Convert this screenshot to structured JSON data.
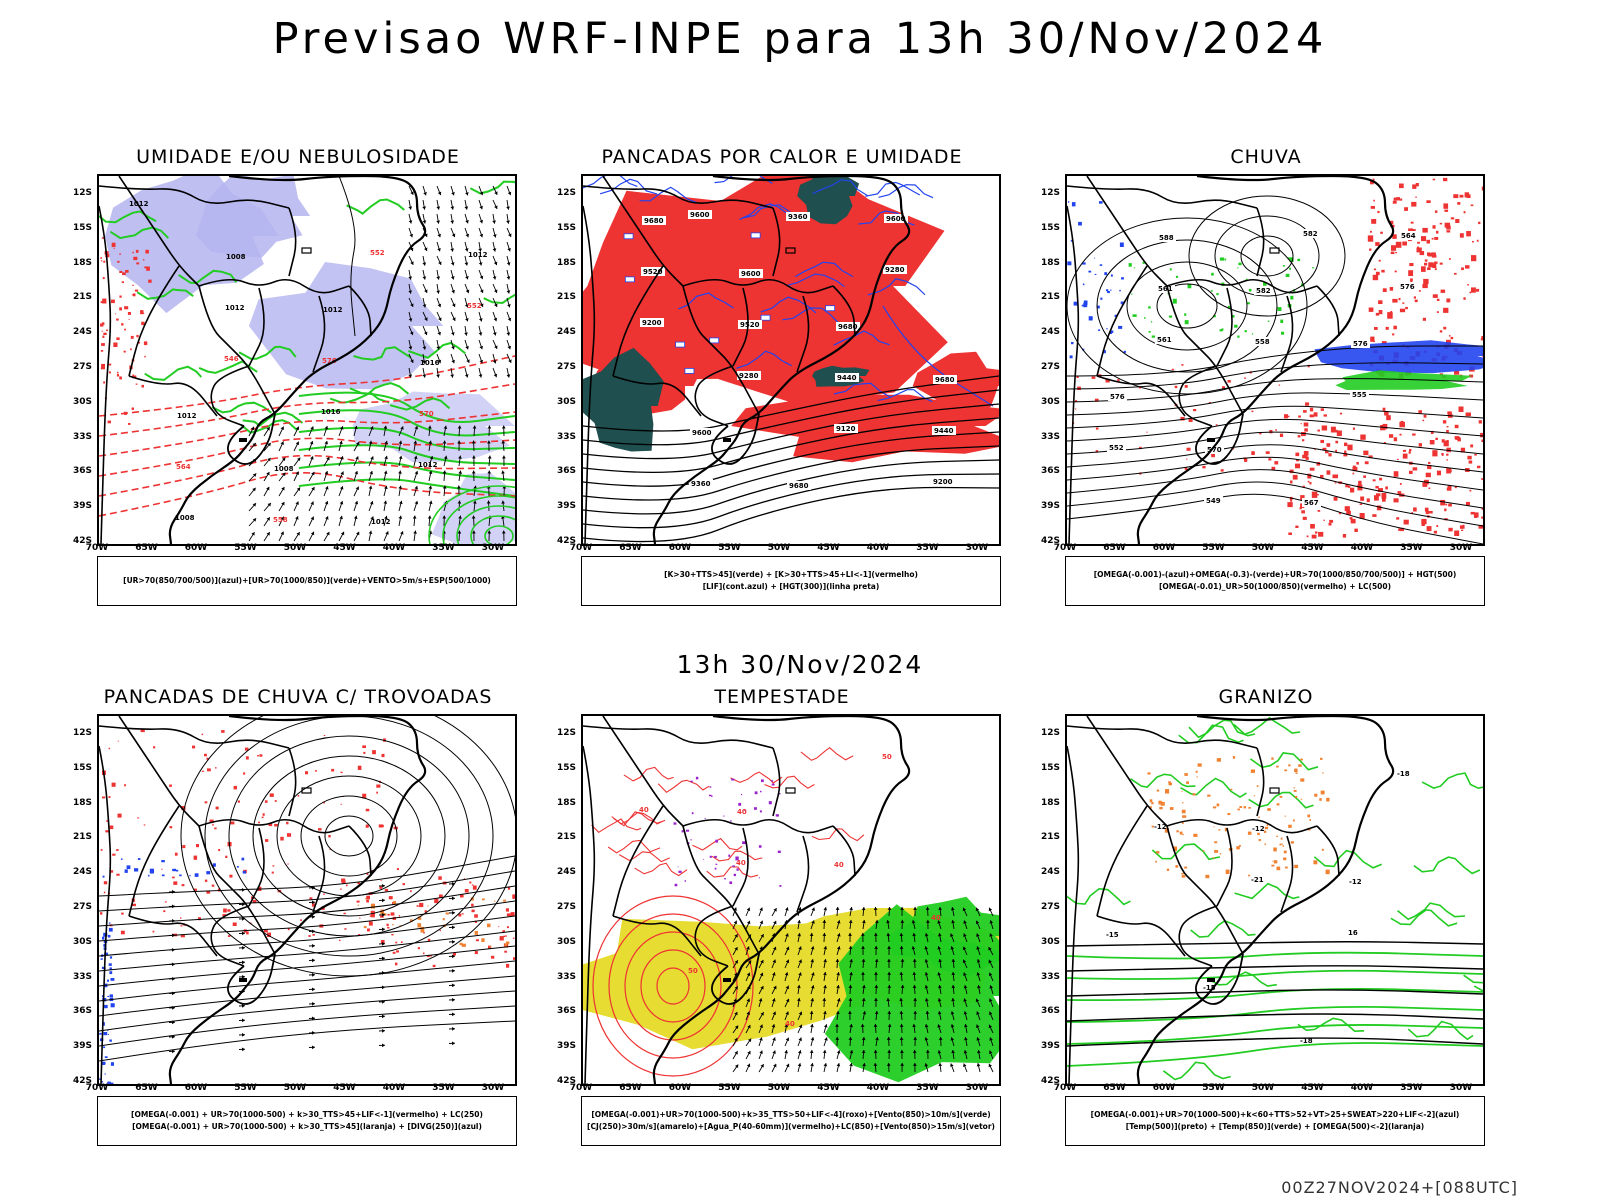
{
  "header": {
    "title": "Previsao WRF-INPE  para 13h 30/Nov/2024",
    "mid_title": "13h 30/Nov/2024",
    "footer": "00Z27NOV2024+[088UTC]"
  },
  "axes": {
    "lat_labels": [
      "12S",
      "15S",
      "18S",
      "21S",
      "24S",
      "27S",
      "30S",
      "33S",
      "36S",
      "39S",
      "42S"
    ],
    "lon_labels": [
      "70W",
      "65W",
      "60W",
      "55W",
      "50W",
      "45W",
      "40W",
      "35W",
      "30W"
    ]
  },
  "colors": {
    "red": "#ee3333",
    "green": "#22cc22",
    "blue": "#2244ee",
    "lavender": "#b4b4f0",
    "darkteal": "#1f4f4f",
    "yellow": "#e6dc32",
    "orange": "#f08232",
    "purple": "#9922cc",
    "black": "#000000"
  },
  "panels": [
    {
      "id": "umidade",
      "title": "UMIDADE E/OU NEBULOSIDADE",
      "legend": [
        "[UR>70(850/700/500)](azul)+[UR>70(1000/850)](verde)+VENTO>5m/s+ESP(500/1000)"
      ],
      "contour_labels": [
        "1012",
        "1008",
        "1012",
        "1016",
        "1012",
        "1008",
        "1012",
        "1012",
        "1012",
        "576",
        "570",
        "564",
        "558",
        "552",
        "552",
        "546",
        "1016",
        "1012",
        "1008"
      ]
    },
    {
      "id": "pancadas_calor",
      "title": "PANCADAS POR CALOR E UMIDADE",
      "legend": [
        "[K>30+TTS>45](verde) + [K>30+TTS>45+LI<-1](vermelho)",
        "[LIF](cont.azul) + [HGT(300)](linha preta)"
      ],
      "contour_labels": [
        "9680",
        "9600",
        "9680",
        "9680",
        "9600",
        "9680",
        "9600",
        "9520",
        "9520",
        "9440",
        "9440",
        "9360",
        "9360",
        "9280",
        "9200",
        "9280",
        "9120",
        "9200",
        "9600"
      ]
    },
    {
      "id": "chuva",
      "title": "CHUVA",
      "legend": [
        "[OMEGA(-0.001)-(azul)+OMEGA(-0.3)-(verde)+UR>70(1000/850/700/500)] + HGT(500)",
        "[OMEGA(-0.01)_UR>50(1000/850)(vermelho) + LC(500)"
      ],
      "contour_labels": [
        "588",
        "582",
        "576",
        "576",
        "570",
        "567",
        "564",
        "561",
        "558",
        "555",
        "552",
        "549",
        "582",
        "576",
        "561"
      ]
    },
    {
      "id": "pancadas_trovoadas",
      "title": "PANCADAS DE CHUVA C/ TROVOADAS",
      "legend": [
        "[OMEGA(-0.001) + UR>70(1000-500) + k>30_TTS>45+LIF<-1](vermelho) + LC(250)",
        "[OMEGA(-0.001) + UR>70(1000-500) + k>30_TTS>45](laranja) + [DIVG(250)](azul)"
      ],
      "contour_labels": []
    },
    {
      "id": "tempestade",
      "title": "TEMPESTADE",
      "legend": [
        "[OMEGA(-0.001)+UR>70(1000-500)+k>35_TTS>50+LIF<-4](roxo)+[Vento(850)>10m/s](verde)",
        "[CJ(250)>30m/s](amarelo)+[Agua_P(40-60mm)](vermelho)+LC(850)+[Vento(850)>15m/s](vetor)"
      ],
      "contour_labels": [
        "40",
        "40",
        "40",
        "50",
        "40",
        "50",
        "40",
        "40"
      ]
    },
    {
      "id": "granizo",
      "title": "GRANIZO",
      "legend": [
        "[OMEGA(-0.001)+UR>70(1000-500)+k<60+TTS>52+VT>25+SWEAT>220+LIF<-2](azul)",
        "[Temp(500)](preto) + [Temp(850)](verde) + [OMEGA(500)<-2](laranja)"
      ],
      "contour_labels": [
        "-12",
        "-12",
        "-15",
        "-15",
        "-18",
        "-18",
        "-12",
        "-21",
        "16"
      ]
    }
  ]
}
